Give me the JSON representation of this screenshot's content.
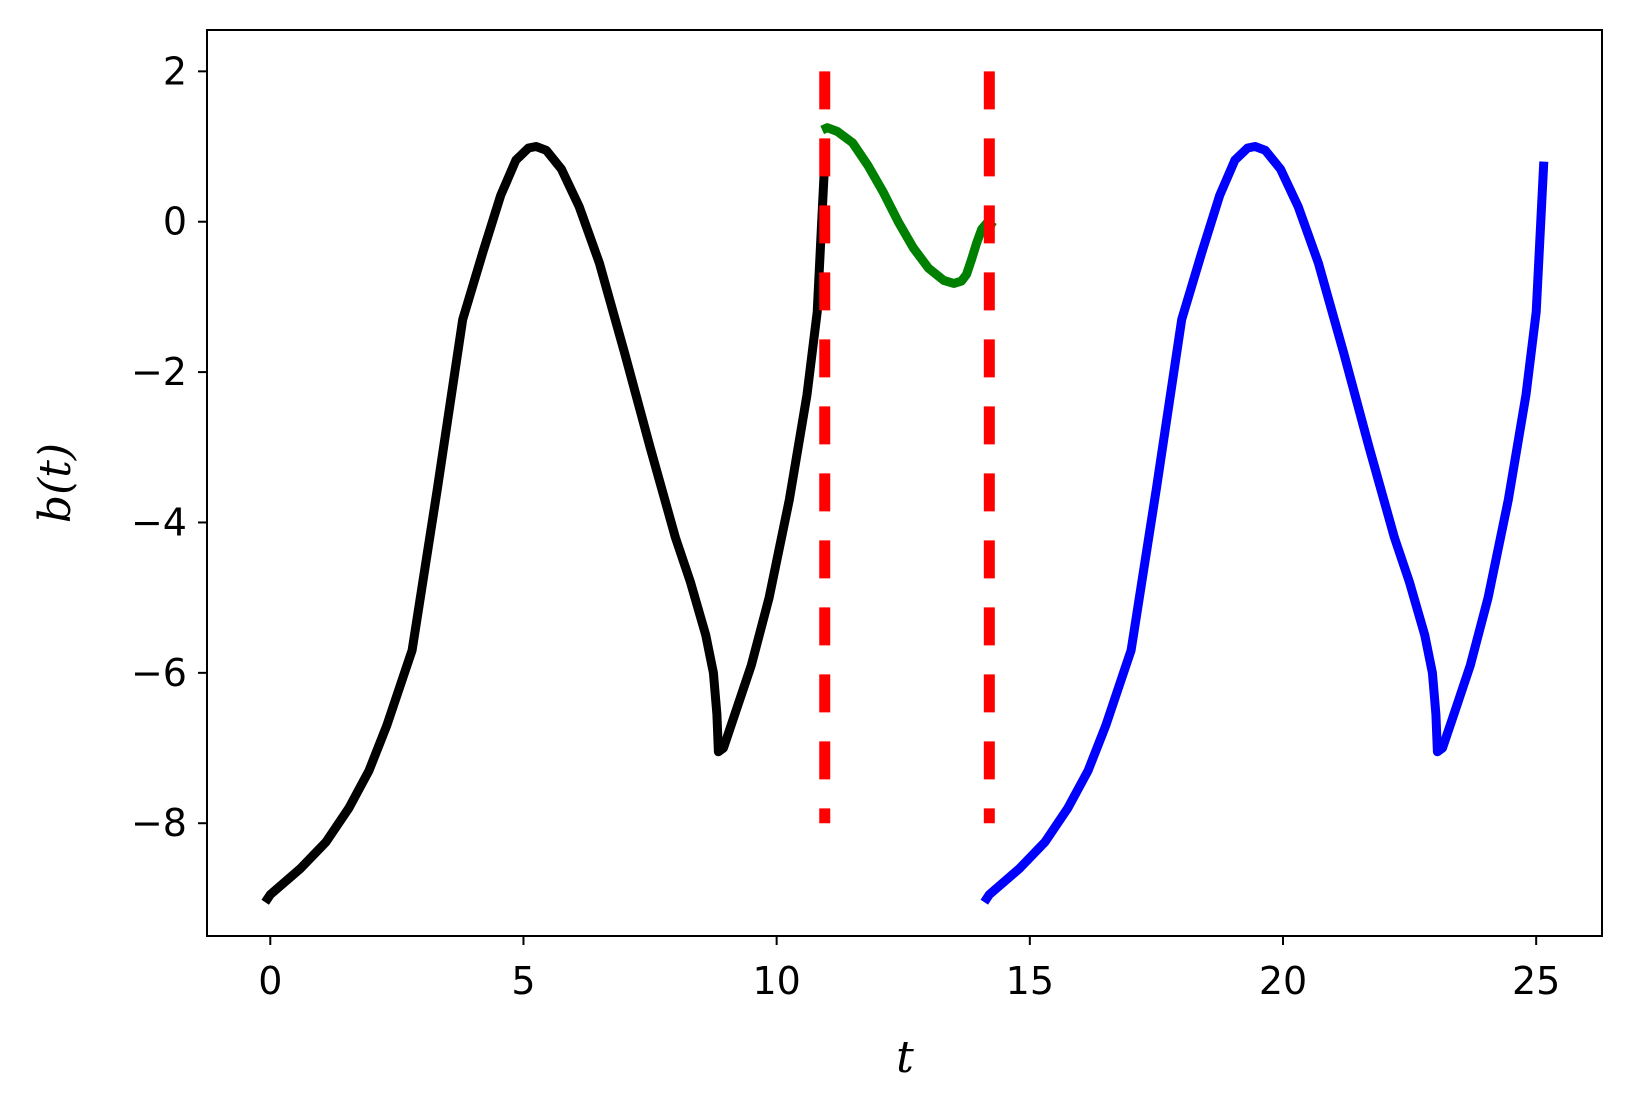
{
  "chart_data": {
    "type": "line",
    "xlabel": "t",
    "ylabel": "b(t)",
    "xlim": [
      -1.25,
      26.3
    ],
    "ylim": [
      -9.5,
      2.55
    ],
    "x_ticks": [
      0,
      5,
      10,
      15,
      20,
      25
    ],
    "x_tick_labels": [
      "0",
      "5",
      "10",
      "15",
      "20",
      "25"
    ],
    "y_ticks": [
      2,
      0,
      -2,
      -4,
      -6,
      -8
    ],
    "y_tick_labels": [
      "2",
      "0",
      "−2",
      "−4",
      "−6",
      "−8"
    ],
    "grid": false,
    "series": [
      {
        "color": "#000000",
        "points": [
          [
            -0.1,
            -9.05
          ],
          [
            0.0,
            -8.95
          ],
          [
            0.6,
            -8.6
          ],
          [
            1.1,
            -8.25
          ],
          [
            1.55,
            -7.8
          ],
          [
            1.95,
            -7.3
          ],
          [
            2.3,
            -6.7
          ],
          [
            2.65,
            -6.0
          ],
          [
            2.8,
            -5.7
          ],
          [
            3.3,
            -3.55
          ],
          [
            3.8,
            -1.3
          ],
          [
            4.2,
            -0.4
          ],
          [
            4.55,
            0.35
          ],
          [
            4.85,
            0.82
          ],
          [
            5.1,
            0.98
          ],
          [
            5.25,
            1.0
          ],
          [
            5.45,
            0.95
          ],
          [
            5.75,
            0.7
          ],
          [
            6.1,
            0.2
          ],
          [
            6.5,
            -0.55
          ],
          [
            7.0,
            -1.75
          ],
          [
            7.5,
            -3.0
          ],
          [
            8.0,
            -4.2
          ],
          [
            8.3,
            -4.8
          ],
          [
            8.6,
            -5.5
          ],
          [
            8.75,
            -6.0
          ],
          [
            8.82,
            -6.55
          ],
          [
            8.85,
            -7.05
          ],
          [
            8.95,
            -7.0
          ],
          [
            9.2,
            -6.5
          ],
          [
            9.5,
            -5.9
          ],
          [
            9.85,
            -5.0
          ],
          [
            10.25,
            -3.7
          ],
          [
            10.6,
            -2.3
          ],
          [
            10.8,
            -1.2
          ],
          [
            10.95,
            0.8
          ]
        ]
      },
      {
        "color": "#008000",
        "points": [
          [
            10.9,
            1.22
          ],
          [
            11.0,
            1.25
          ],
          [
            11.2,
            1.2
          ],
          [
            11.5,
            1.05
          ],
          [
            11.8,
            0.75
          ],
          [
            12.1,
            0.4
          ],
          [
            12.4,
            0.0
          ],
          [
            12.7,
            -0.35
          ],
          [
            13.0,
            -0.62
          ],
          [
            13.3,
            -0.78
          ],
          [
            13.5,
            -0.82
          ],
          [
            13.65,
            -0.79
          ],
          [
            13.75,
            -0.7
          ],
          [
            13.85,
            -0.5
          ],
          [
            13.95,
            -0.28
          ],
          [
            14.05,
            -0.1
          ],
          [
            14.15,
            -0.02
          ],
          [
            14.3,
            -0.08
          ]
        ]
      },
      {
        "color": "#0000ff",
        "points": [
          [
            14.1,
            -9.05
          ],
          [
            14.2,
            -8.95
          ],
          [
            14.8,
            -8.6
          ],
          [
            15.3,
            -8.25
          ],
          [
            15.75,
            -7.8
          ],
          [
            16.15,
            -7.3
          ],
          [
            16.5,
            -6.7
          ],
          [
            16.85,
            -6.0
          ],
          [
            17.0,
            -5.7
          ],
          [
            17.5,
            -3.55
          ],
          [
            18.0,
            -1.3
          ],
          [
            18.4,
            -0.4
          ],
          [
            18.75,
            0.35
          ],
          [
            19.05,
            0.82
          ],
          [
            19.3,
            0.98
          ],
          [
            19.45,
            1.0
          ],
          [
            19.65,
            0.95
          ],
          [
            19.95,
            0.7
          ],
          [
            20.3,
            0.2
          ],
          [
            20.7,
            -0.55
          ],
          [
            21.2,
            -1.75
          ],
          [
            21.7,
            -3.0
          ],
          [
            22.2,
            -4.2
          ],
          [
            22.5,
            -4.8
          ],
          [
            22.8,
            -5.5
          ],
          [
            22.95,
            -6.0
          ],
          [
            23.02,
            -6.55
          ],
          [
            23.05,
            -7.05
          ],
          [
            23.15,
            -7.0
          ],
          [
            23.4,
            -6.5
          ],
          [
            23.7,
            -5.9
          ],
          [
            24.05,
            -5.0
          ],
          [
            24.45,
            -3.7
          ],
          [
            24.8,
            -2.3
          ],
          [
            25.0,
            -1.2
          ],
          [
            25.15,
            0.8
          ]
        ]
      }
    ],
    "vlines": [
      {
        "x": 10.95,
        "ymin": -8.0,
        "ymax": 2.0,
        "color": "#ff0000",
        "style": "dashed"
      },
      {
        "x": 14.2,
        "ymin": -8.0,
        "ymax": 2.0,
        "color": "#ff0000",
        "style": "dashed"
      }
    ]
  }
}
